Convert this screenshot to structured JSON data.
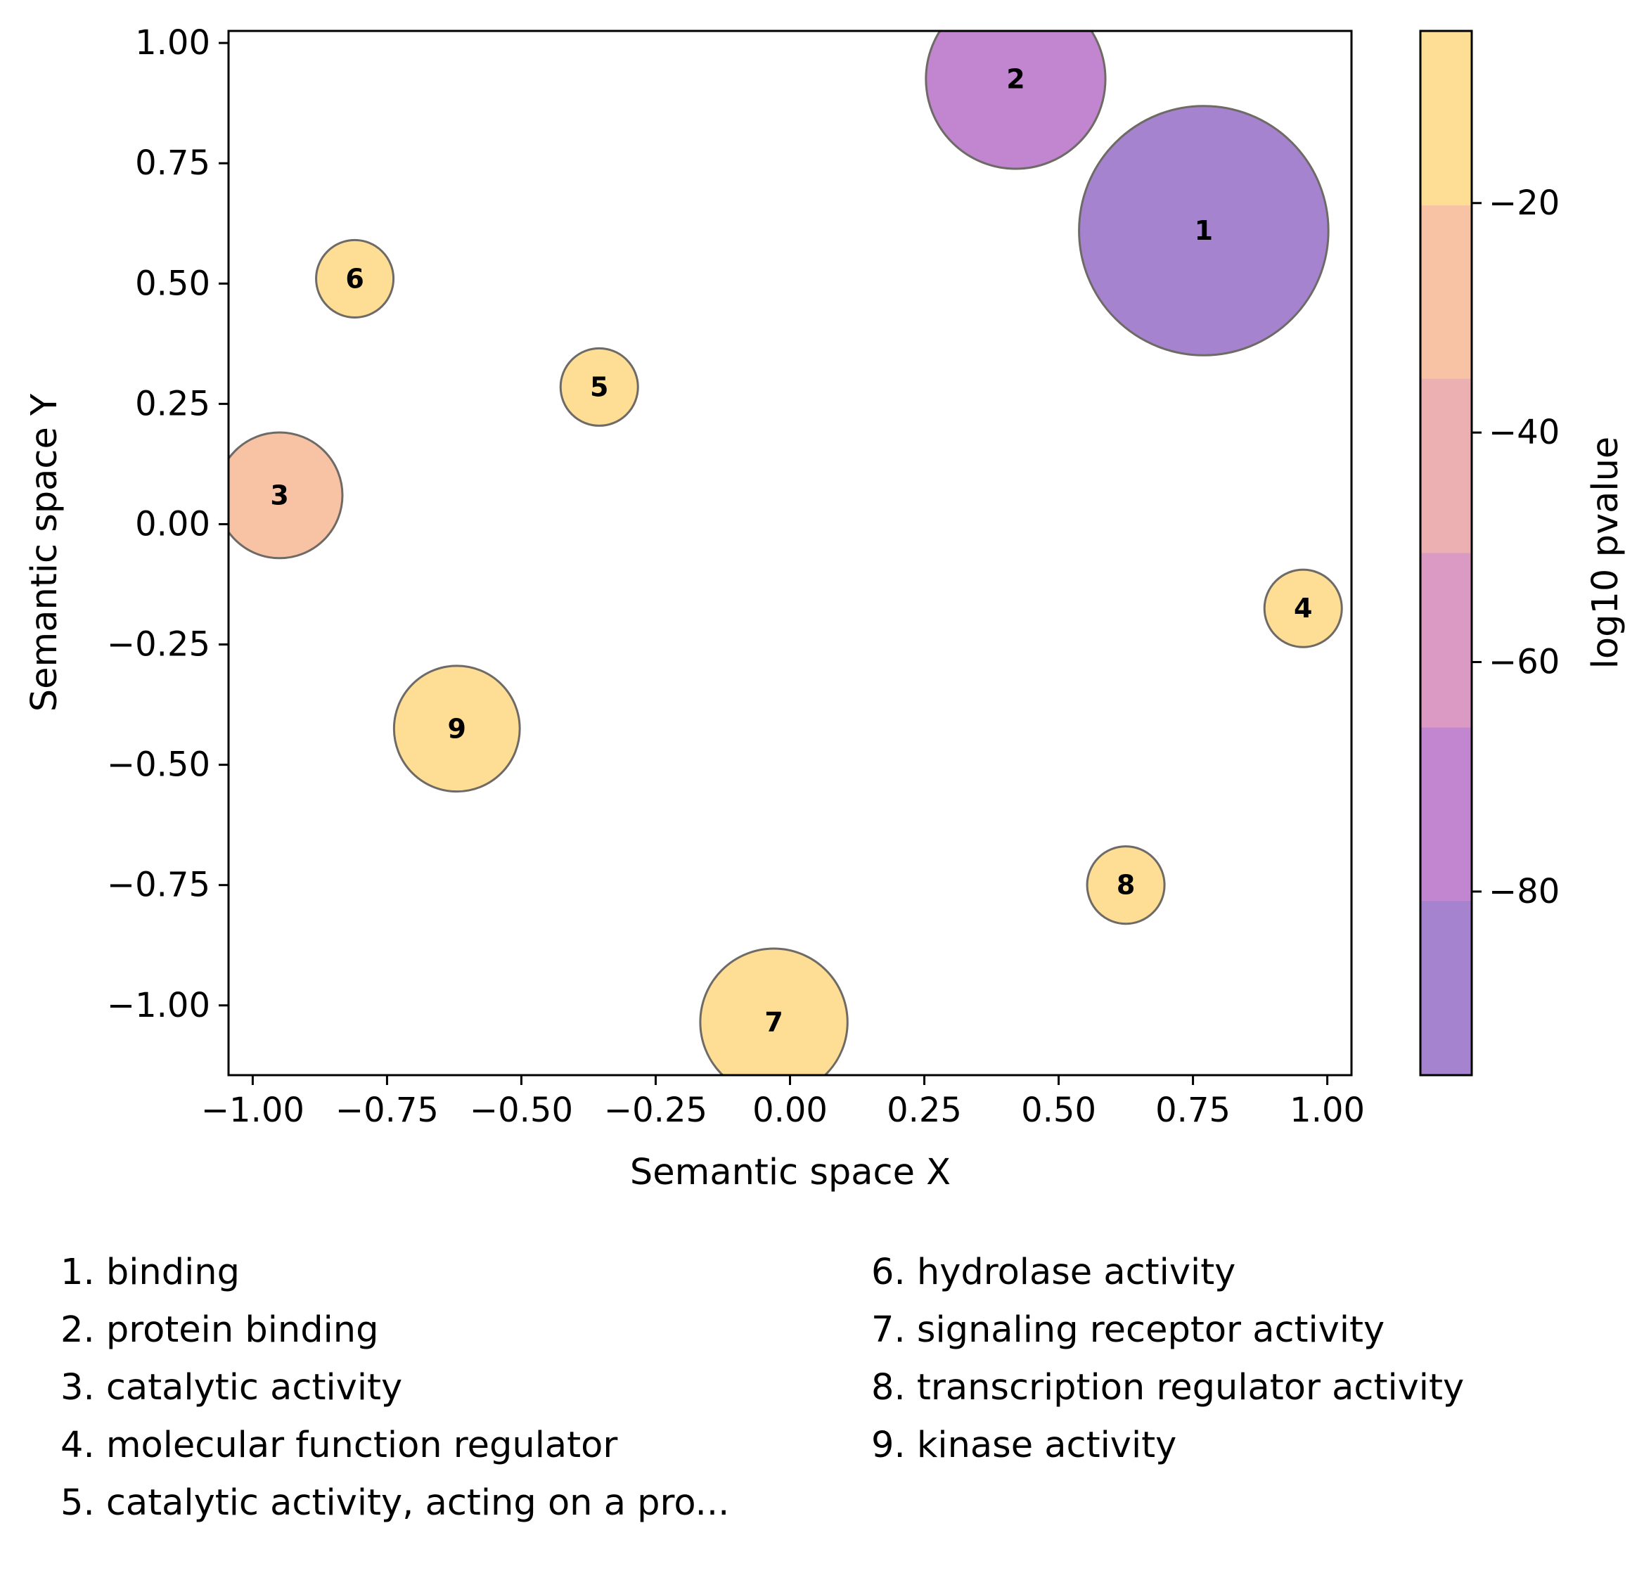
{
  "chart_data": {
    "type": "scatter",
    "title": "",
    "xlabel": "Semantic space X",
    "ylabel": "Semantic space Y",
    "xlim": [
      -1.045,
      1.045
    ],
    "ylim": [
      -1.145,
      1.025
    ],
    "xticks": [
      "−1.00",
      "−0.75",
      "−0.50",
      "−0.25",
      "0.00",
      "0.25",
      "0.50",
      "0.75",
      "1.00"
    ],
    "xtick_values": [
      -1.0,
      -0.75,
      -0.5,
      -0.25,
      0.0,
      0.25,
      0.5,
      0.75,
      1.0
    ],
    "yticks": [
      "1.00",
      "0.75",
      "0.50",
      "0.25",
      "0.00",
      "−0.25",
      "−0.50",
      "−0.75",
      "−1.00"
    ],
    "ytick_values": [
      1.0,
      0.75,
      0.5,
      0.25,
      0.0,
      -0.25,
      -0.5,
      -0.75,
      -1.0
    ],
    "points": [
      {
        "label": "1",
        "x": 0.77,
        "y": 0.61,
        "radius": 0.232,
        "log10_pvalue": -90
      },
      {
        "label": "2",
        "x": 0.42,
        "y": 0.925,
        "radius": 0.167,
        "log10_pvalue": -75
      },
      {
        "label": "3",
        "x": -0.95,
        "y": 0.06,
        "radius": 0.117,
        "log10_pvalue": -25
      },
      {
        "label": "4",
        "x": 0.955,
        "y": -0.175,
        "radius": 0.072,
        "log10_pvalue": -5
      },
      {
        "label": "5",
        "x": -0.355,
        "y": 0.285,
        "radius": 0.072,
        "log10_pvalue": -5
      },
      {
        "label": "6",
        "x": -0.81,
        "y": 0.51,
        "radius": 0.072,
        "log10_pvalue": -5
      },
      {
        "label": "7",
        "x": -0.03,
        "y": -1.035,
        "radius": 0.137,
        "log10_pvalue": -5
      },
      {
        "label": "8",
        "x": 0.625,
        "y": -0.75,
        "radius": 0.072,
        "log10_pvalue": -5
      },
      {
        "label": "9",
        "x": -0.62,
        "y": -0.425,
        "radius": 0.117,
        "log10_pvalue": -5
      }
    ],
    "colorbar": {
      "label": "log10 pvalue",
      "range": [
        -96,
        -5
      ],
      "ticks": [
        "−20",
        "−40",
        "−60",
        "−80"
      ],
      "tick_values": [
        -20,
        -40,
        -60,
        -80
      ],
      "bands": [
        {
          "from": -96,
          "to": -80.8,
          "color": "#a683cf"
        },
        {
          "from": -80.8,
          "to": -65.7,
          "color": "#c285d0"
        },
        {
          "from": -65.7,
          "to": -50.5,
          "color": "#da9ac3"
        },
        {
          "from": -50.5,
          "to": -35.3,
          "color": "#ecb0b2"
        },
        {
          "from": -35.3,
          "to": -20.2,
          "color": "#f8c3a5"
        },
        {
          "from": -20.2,
          "to": -5,
          "color": "#fedd95"
        }
      ]
    },
    "legend": [
      "1. binding",
      "2. protein binding",
      "3. catalytic activity",
      "4. molecular function regulator",
      "5. catalytic activity, acting on a pro...",
      "6. hydrolase activity",
      "7. signaling receptor activity",
      "8. transcription regulator activity",
      "9. kinase activity"
    ]
  }
}
